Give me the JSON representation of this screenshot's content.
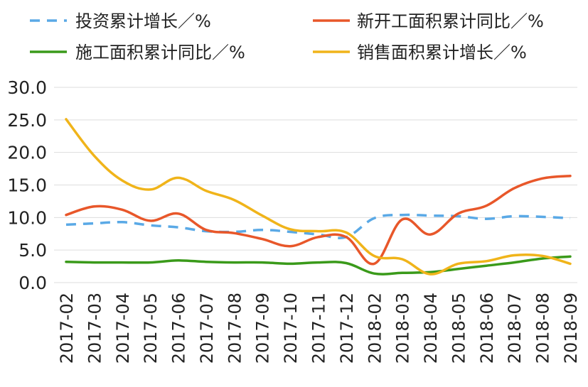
{
  "chart_data": {
    "type": "line",
    "categories": [
      "2017-02",
      "2017-03",
      "2017-04",
      "2017-05",
      "2017-06",
      "2017-07",
      "2017-08",
      "2017-09",
      "2017-10",
      "2017-11",
      "2017-12",
      "2018-02",
      "2018-03",
      "2018-04",
      "2018-05",
      "2018-06",
      "2018-07",
      "2018-08",
      "2018-09"
    ],
    "y_tick_labels": [
      "0.0",
      "5.0",
      "10.0",
      "15.0",
      "20.0",
      "25.0",
      "30.0"
    ],
    "ylim": [
      0,
      30
    ],
    "grid": "horizontal",
    "legend_position": "top",
    "series": [
      {
        "name": "投资累计增长／%",
        "color": "#5aa9e6",
        "dash": "dashed",
        "values": [
          8.9,
          9.1,
          9.3,
          8.8,
          8.5,
          7.9,
          7.8,
          8.1,
          7.8,
          7.4,
          7.0,
          9.9,
          10.4,
          10.3,
          10.2,
          9.8,
          10.2,
          10.1,
          9.9
        ]
      },
      {
        "name": "新开工面积累计同比／%",
        "color": "#e8572a",
        "dash": "solid",
        "values": [
          10.4,
          11.7,
          11.2,
          9.5,
          10.6,
          8.1,
          7.6,
          6.7,
          5.6,
          7.0,
          7.0,
          2.9,
          9.7,
          7.4,
          10.6,
          11.8,
          14.5,
          16.0,
          16.4
        ]
      },
      {
        "name": "施工面积累计同比／%",
        "color": "#3a9a1a",
        "dash": "solid",
        "values": [
          3.2,
          3.1,
          3.1,
          3.1,
          3.4,
          3.2,
          3.1,
          3.1,
          2.9,
          3.1,
          3.0,
          1.4,
          1.5,
          1.6,
          2.1,
          2.6,
          3.1,
          3.7,
          4.0
        ]
      },
      {
        "name": "销售面积累计增长／%",
        "color": "#f0b41a",
        "dash": "solid",
        "values": [
          25.1,
          19.5,
          15.7,
          14.3,
          16.1,
          14.1,
          12.7,
          10.3,
          8.2,
          7.9,
          7.7,
          4.1,
          3.6,
          1.3,
          2.9,
          3.3,
          4.2,
          4.1,
          2.9
        ]
      }
    ]
  }
}
